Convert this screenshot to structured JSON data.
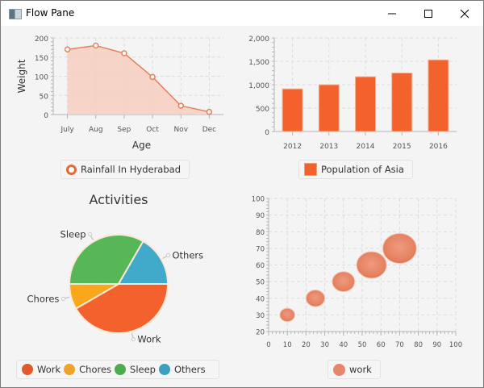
{
  "window": {
    "title": "Flow Pane",
    "controls": [
      "minimize",
      "maximize",
      "close"
    ]
  },
  "colors": {
    "orange": "#f3622d",
    "amber": "#fba71b",
    "green": "#57b757",
    "blue": "#41a9c9",
    "area_fill": "#f6cfc0",
    "area_line": "#e3805e",
    "bubble": "#e8866a"
  },
  "chart_data": [
    {
      "type": "area",
      "title": "",
      "xlabel": "Age",
      "ylabel": "Weight",
      "categories": [
        "July",
        "Aug",
        "Sep",
        "Oct",
        "Nov",
        "Dec"
      ],
      "series": [
        {
          "name": "Rainfall In Hyderabad",
          "values": [
            170,
            180,
            160,
            98,
            23,
            7
          ]
        }
      ],
      "ylim": [
        0,
        200
      ],
      "yticks": [
        0,
        50,
        100,
        150,
        200
      ],
      "ytick_labels": [
        "0",
        "50",
        "100",
        "150",
        "200"
      ],
      "grid": true,
      "legend": "bottom"
    },
    {
      "type": "bar",
      "title": "",
      "xlabel": "",
      "ylabel": "",
      "categories": [
        "2012",
        "2013",
        "2014",
        "2015",
        "2016"
      ],
      "series": [
        {
          "name": "Population of Asia",
          "values": [
            910,
            1000,
            1170,
            1250,
            1530
          ]
        }
      ],
      "ylim": [
        0,
        2000
      ],
      "yticks": [
        0,
        500,
        1000,
        1500,
        2000
      ],
      "ytick_labels": [
        "0",
        "500",
        "1,000",
        "1,500",
        "2,000"
      ],
      "grid": true,
      "legend": "bottom"
    },
    {
      "type": "pie",
      "title": "Activities",
      "labels": [
        "Work",
        "Chores",
        "Sleep",
        "Others"
      ],
      "values": [
        10,
        2,
        8,
        4
      ],
      "colors": [
        "#f3622d",
        "#fba71b",
        "#57b757",
        "#41a9c9"
      ],
      "legend": "bottom"
    },
    {
      "type": "scatter",
      "subtype": "bubble",
      "title": "",
      "xlabel": "",
      "ylabel": "",
      "series": [
        {
          "name": "work",
          "x": [
            10,
            25,
            40,
            55,
            70
          ],
          "y": [
            30,
            40,
            50,
            60,
            70
          ],
          "size": [
            4,
            5,
            6,
            8,
            9
          ]
        }
      ],
      "xlim": [
        0,
        100
      ],
      "ylim": [
        20,
        100
      ],
      "xticks": [
        0,
        10,
        20,
        30,
        40,
        50,
        60,
        70,
        80,
        90,
        100
      ],
      "yticks": [
        20,
        30,
        40,
        50,
        60,
        70,
        80,
        90,
        100
      ],
      "grid": true,
      "legend": "bottom"
    }
  ]
}
